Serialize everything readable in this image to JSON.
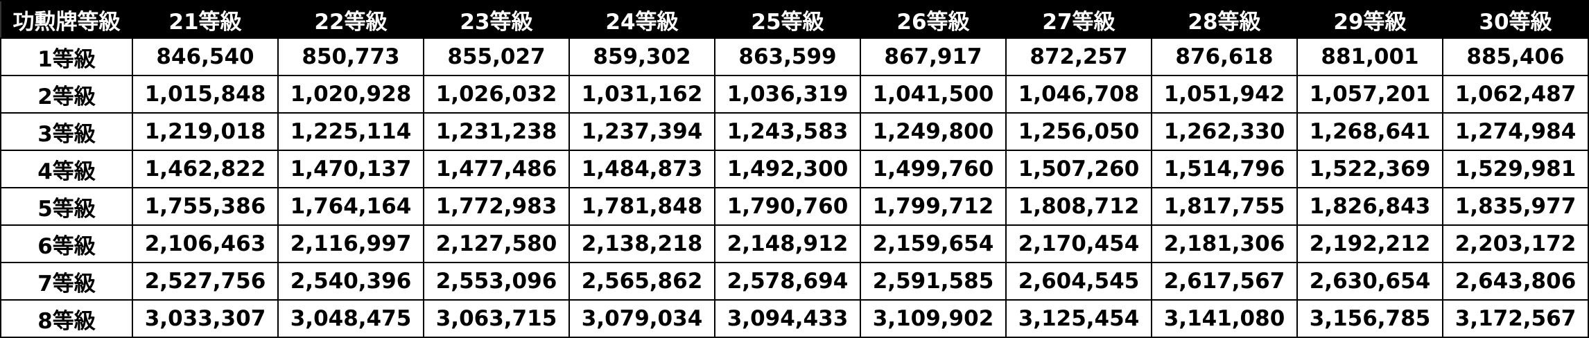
{
  "table": {
    "header": [
      "功勲牌等級",
      "21等級",
      "22等級",
      "23等級",
      "24等級",
      "25等級",
      "26等級",
      "27等級",
      "28等級",
      "29等級",
      "30等級"
    ],
    "rows": [
      [
        "1等級",
        "846,540",
        "850,773",
        "855,027",
        "859,302",
        "863,599",
        "867,917",
        "872,257",
        "876,618",
        "881,001",
        "885,406"
      ],
      [
        "2等級",
        "1,015,848",
        "1,020,928",
        "1,026,032",
        "1,031,162",
        "1,036,319",
        "1,041,500",
        "1,046,708",
        "1,051,942",
        "1,057,201",
        "1,062,487"
      ],
      [
        "3等級",
        "1,219,018",
        "1,225,114",
        "1,231,238",
        "1,237,394",
        "1,243,583",
        "1,249,800",
        "1,256,050",
        "1,262,330",
        "1,268,641",
        "1,274,984"
      ],
      [
        "4等級",
        "1,462,822",
        "1,470,137",
        "1,477,486",
        "1,484,873",
        "1,492,300",
        "1,499,760",
        "1,507,260",
        "1,514,796",
        "1,522,369",
        "1,529,981"
      ],
      [
        "5等級",
        "1,755,386",
        "1,764,164",
        "1,772,983",
        "1,781,848",
        "1,790,760",
        "1,799,712",
        "1,808,712",
        "1,817,755",
        "1,826,843",
        "1,835,977"
      ],
      [
        "6等級",
        "2,106,463",
        "2,116,997",
        "2,127,580",
        "2,138,218",
        "2,148,912",
        "2,159,654",
        "2,170,454",
        "2,181,306",
        "2,192,212",
        "2,203,172"
      ],
      [
        "7等級",
        "2,527,756",
        "2,540,396",
        "2,553,096",
        "2,565,862",
        "2,578,694",
        "2,591,585",
        "2,604,545",
        "2,617,567",
        "2,630,654",
        "2,643,806"
      ],
      [
        "8等級",
        "3,033,307",
        "3,048,475",
        "3,063,715",
        "3,079,034",
        "3,094,433",
        "3,109,902",
        "3,125,454",
        "3,141,080",
        "3,156,785",
        "3,172,567"
      ]
    ]
  }
}
